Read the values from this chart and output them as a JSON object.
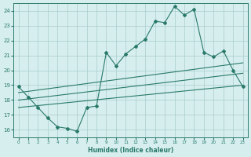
{
  "background_color": "#d6eeee",
  "grid_color": "#aacccc",
  "line_color": "#2a7a6a",
  "xlabel": "Humidex (Indice chaleur)",
  "xlim": [
    -0.5,
    23.5
  ],
  "ylim": [
    15.5,
    24.5
  ],
  "yticks": [
    16,
    17,
    18,
    19,
    20,
    21,
    22,
    23,
    24
  ],
  "xticks": [
    0,
    1,
    2,
    3,
    4,
    5,
    6,
    7,
    8,
    9,
    10,
    11,
    12,
    13,
    14,
    15,
    16,
    17,
    18,
    19,
    20,
    21,
    22,
    23
  ],
  "line1_x": [
    0,
    1,
    2,
    3,
    4,
    5,
    6,
    7,
    8,
    9,
    10,
    11,
    12,
    13,
    14,
    15,
    16,
    17,
    18,
    19,
    20,
    21,
    22,
    23
  ],
  "line1_y": [
    18.9,
    18.2,
    17.5,
    16.8,
    16.2,
    16.1,
    15.9,
    17.5,
    17.6,
    21.2,
    20.3,
    21.1,
    21.6,
    22.1,
    23.3,
    23.2,
    24.3,
    23.7,
    24.1,
    21.2,
    20.9,
    21.3,
    20.0,
    18.9
  ],
  "line2_x": [
    0,
    23
  ],
  "line2_y": [
    18.5,
    20.5
  ],
  "line3_x": [
    0,
    23
  ],
  "line3_y": [
    17.5,
    19.0
  ],
  "line4_x": [
    0,
    23
  ],
  "line4_y": [
    18.0,
    19.8
  ]
}
